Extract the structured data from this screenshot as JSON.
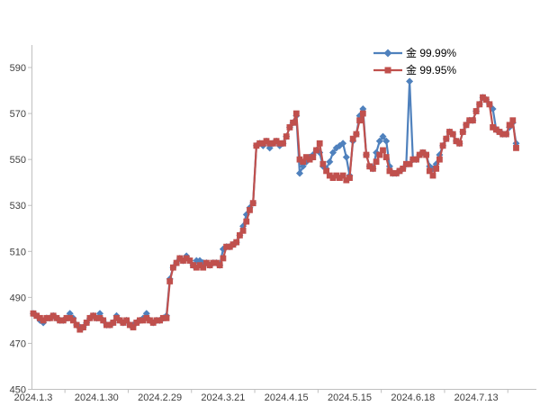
{
  "page": {
    "background": "#ffffff"
  },
  "chart_data": {
    "type": "line",
    "title": "",
    "x": {
      "tick_labels": [
        "2024.1.3",
        "2024.1.30",
        "2024.2.29",
        "2024.3.21",
        "2024.4.15",
        "2024.5.15",
        "2024.6.18",
        "2024.7.13"
      ],
      "points_per_label": 19,
      "total_points": 146
    },
    "y": {
      "min": 450,
      "max": 590,
      "tick_step": 20,
      "tick_labels": [
        450,
        470,
        490,
        510,
        530,
        550,
        570,
        590
      ]
    },
    "legend": {
      "position": "top-right"
    },
    "axis_color": "#bfbfbf",
    "label_color": "#3f3f3f",
    "series": [
      {
        "name": "金 99.99%",
        "color": "#4F81BD",
        "marker": "diamond",
        "values": [
          483,
          482,
          480,
          479,
          481,
          481,
          482,
          481,
          480,
          480,
          481,
          483,
          481,
          478,
          477,
          477,
          479,
          481,
          482,
          481,
          483,
          480,
          478,
          478,
          479,
          482,
          480,
          479,
          480,
          478,
          478,
          479,
          480,
          481,
          483,
          480,
          479,
          480,
          480,
          481,
          482,
          498,
          503,
          505,
          507,
          506,
          508,
          506,
          504,
          506,
          506,
          505,
          505,
          504,
          505,
          505,
          504,
          511,
          512,
          512,
          513,
          514,
          517,
          521,
          526,
          529,
          531,
          556,
          557,
          556,
          558,
          555,
          557,
          558,
          556,
          557,
          560,
          564,
          566,
          569,
          544,
          547,
          549,
          551,
          552,
          554,
          553,
          547,
          546,
          549,
          553,
          555,
          556,
          557,
          551,
          543,
          558,
          561,
          569,
          572,
          552,
          547,
          546,
          553,
          558,
          560,
          558,
          547,
          544,
          544,
          545,
          546,
          548,
          584,
          550,
          550,
          552,
          553,
          552,
          547,
          546,
          548,
          552,
          556,
          559,
          562,
          561,
          558,
          557,
          562,
          565,
          567,
          567,
          571,
          574,
          577,
          576,
          574,
          572,
          563,
          562,
          561,
          561,
          564,
          566,
          557
        ]
      },
      {
        "name": "金 99.95%",
        "color": "#C0504D",
        "marker": "square",
        "values": [
          483,
          482,
          481,
          480,
          481,
          481,
          482,
          481,
          480,
          480,
          481,
          481,
          480,
          478,
          476,
          477,
          479,
          481,
          482,
          481,
          481,
          480,
          478,
          478,
          479,
          481,
          480,
          479,
          480,
          478,
          477,
          479,
          480,
          480,
          481,
          480,
          479,
          480,
          480,
          481,
          481,
          497,
          503,
          505,
          507,
          506,
          507,
          506,
          504,
          503,
          504,
          503,
          505,
          504,
          505,
          505,
          504,
          507,
          512,
          512,
          513,
          514,
          517,
          519,
          523,
          528,
          531,
          556,
          557,
          557,
          558,
          557,
          557,
          558,
          557,
          557,
          560,
          564,
          566,
          570,
          550,
          549,
          551,
          550,
          551,
          554,
          557,
          548,
          545,
          543,
          542,
          543,
          542,
          543,
          541,
          542,
          559,
          561,
          567,
          570,
          552,
          547,
          546,
          549,
          552,
          554,
          551,
          545,
          544,
          544,
          545,
          546,
          548,
          548,
          550,
          550,
          552,
          553,
          552,
          545,
          543,
          546,
          550,
          556,
          559,
          562,
          561,
          558,
          557,
          562,
          565,
          567,
          567,
          571,
          574,
          577,
          576,
          574,
          564,
          563,
          562,
          561,
          561,
          565,
          567,
          555
        ]
      }
    ]
  }
}
